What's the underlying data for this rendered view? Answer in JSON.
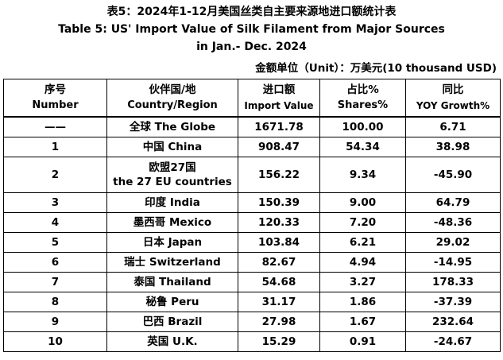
{
  "title": {
    "zh": "表5：2024年1-12月美国丝类自主要来源地进口额统计表",
    "en_line1": "Table 5: US' Import Value of Silk Filament from Major Sources",
    "en_line2": "in Jan.- Dec. 2024"
  },
  "unit_note": "金额单位（Unit）：万美元(10 thousand USD)",
  "columns": [
    {
      "zh": "序号",
      "en": "Number"
    },
    {
      "zh": "伙伴国/地",
      "en": "Country/Region"
    },
    {
      "zh": "进口额",
      "en": "Import Value"
    },
    {
      "zh": "占比%",
      "en": "Shares%"
    },
    {
      "zh": "同比",
      "en": "YOY Growth%"
    }
  ],
  "rows": [
    {
      "number": "——",
      "country": "全球 The Globe",
      "value": "1671.78",
      "share": "100.00",
      "yoy": "6.71"
    },
    {
      "number": "1",
      "country": "中国 China",
      "value": "908.47",
      "share": "54.34",
      "yoy": "38.98"
    },
    {
      "number": "2",
      "country": "欧盟27国",
      "country2": "the 27 EU countries",
      "value": "156.22",
      "share": "9.34",
      "yoy": "-45.90"
    },
    {
      "number": "3",
      "country": "印度 India",
      "value": "150.39",
      "share": "9.00",
      "yoy": "64.79"
    },
    {
      "number": "4",
      "country": "墨西哥 Mexico",
      "value": "120.33",
      "share": "7.20",
      "yoy": "-48.36"
    },
    {
      "number": "5",
      "country": "日本 Japan",
      "value": "103.84",
      "share": "6.21",
      "yoy": "29.02"
    },
    {
      "number": "6",
      "country": "瑞士 Switzerland",
      "value": "82.67",
      "share": "4.94",
      "yoy": "-14.95"
    },
    {
      "number": "7",
      "country": "泰国 Thailand",
      "value": "54.68",
      "share": "3.27",
      "yoy": "178.33"
    },
    {
      "number": "8",
      "country": "秘鲁 Peru",
      "value": "31.17",
      "share": "1.86",
      "yoy": "-37.39"
    },
    {
      "number": "9",
      "country": "巴西 Brazil",
      "value": "27.98",
      "share": "1.67",
      "yoy": "232.64"
    },
    {
      "number": "10",
      "country": "英国 U.K.",
      "value": "15.29",
      "share": "0.91",
      "yoy": "-24.67"
    }
  ]
}
